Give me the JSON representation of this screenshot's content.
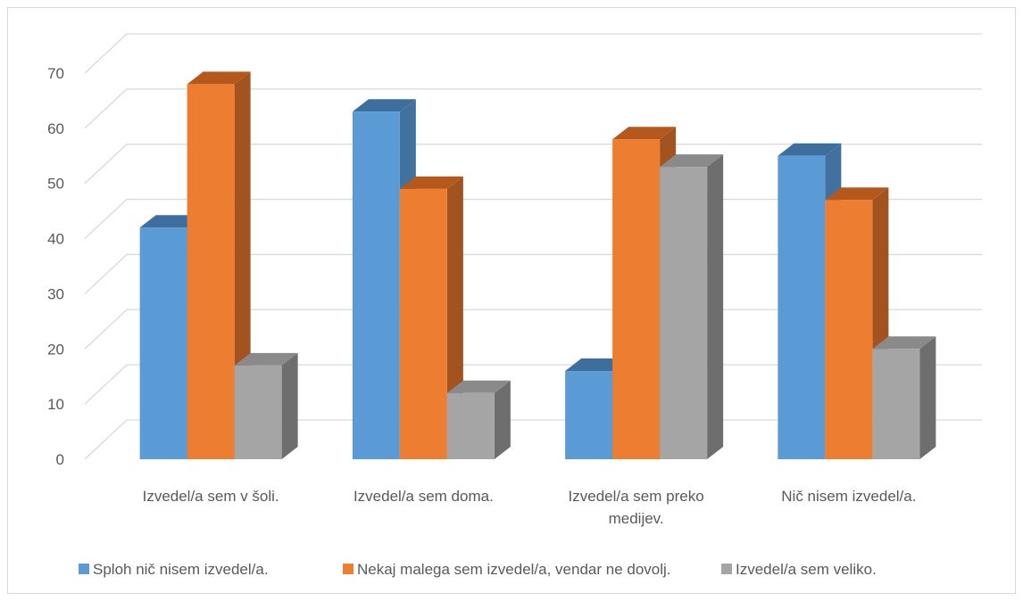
{
  "chart_data": {
    "type": "bar",
    "title": "",
    "xlabel": "",
    "ylabel": "",
    "ylim": [
      0,
      70
    ],
    "yticks": [
      0,
      10,
      20,
      30,
      40,
      50,
      60,
      70
    ],
    "grid": true,
    "legend_position": "bottom",
    "style": "3d-clustered-column",
    "categories": [
      [
        "Izvedel/a sem v šoli."
      ],
      [
        "Izvedel/a sem doma."
      ],
      [
        "Izvedel/a sem preko",
        "medijev."
      ],
      [
        "Nič nisem izvedel/a."
      ]
    ],
    "series": [
      {
        "name": "Sploh nič nisem izvedel/a.",
        "color": "#5B9BD5",
        "side": "#41729F",
        "top": "#3E6E9E",
        "values": [
          42,
          63,
          16,
          55
        ]
      },
      {
        "name": "Nekaj malega sem izvedel/a, vendar ne dovolj.",
        "color": "#ED7D31",
        "side": "#A2531F",
        "top": "#B5581C",
        "values": [
          68,
          49,
          58,
          47
        ]
      },
      {
        "name": "Izvedel/a sem veliko.",
        "color": "#A5A5A5",
        "side": "#6E6E6E",
        "top": "#8A8A8A",
        "values": [
          17,
          12,
          53,
          20
        ]
      }
    ]
  }
}
